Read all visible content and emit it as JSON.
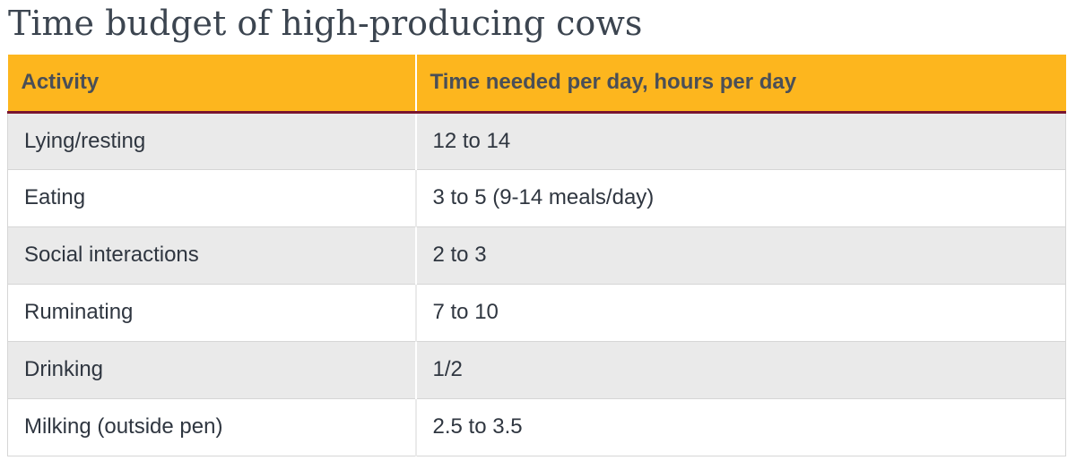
{
  "title": "Time budget of high-producing cows",
  "table": {
    "headers": [
      "Activity",
      "Time needed per day, hours per day"
    ],
    "rows": [
      {
        "activity": "Lying/resting",
        "time": "12 to 14"
      },
      {
        "activity": "Eating",
        "time": "3 to 5 (9-14 meals/day)"
      },
      {
        "activity": "Social interactions",
        "time": "2 to 3"
      },
      {
        "activity": "Ruminating",
        "time": "7 to 10"
      },
      {
        "activity": "Drinking",
        "time": "1/2"
      },
      {
        "activity": "Milking (outside pen)",
        "time": "2.5 to 3.5"
      }
    ]
  },
  "colors": {
    "header_bg": "#fdb61e",
    "header_rule": "#7a1530",
    "stripe": "#eaeaea"
  }
}
